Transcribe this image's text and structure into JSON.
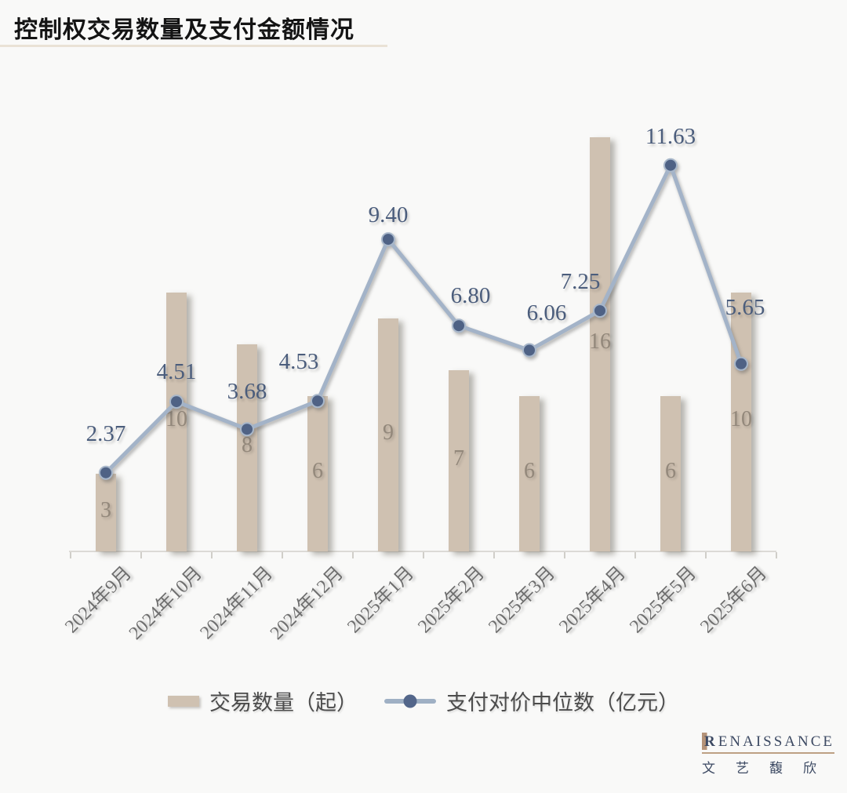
{
  "header": {
    "title": "控制权交易数量及支付金额情况"
  },
  "chart_data": {
    "type": "bar",
    "subtype": "combo-bar-line",
    "title": "控制权交易数量及支付金额情况",
    "categories": [
      "2024年9月",
      "2024年10月",
      "2024年11月",
      "2024年12月",
      "2025年1月",
      "2025年2月",
      "2025年3月",
      "2025年4月",
      "2025年5月",
      "2025年6月"
    ],
    "series": [
      {
        "name": "交易数量（起）",
        "type": "bar",
        "values": [
          3,
          10,
          8,
          6,
          9,
          7,
          6,
          16,
          6,
          10
        ],
        "color": "#cfc1b1",
        "label_color": "#93887b",
        "value_labels": "inside-center"
      },
      {
        "name": "支付对价中位数（亿元）",
        "type": "line",
        "values": [
          2.37,
          4.51,
          3.68,
          4.53,
          9.4,
          6.8,
          6.06,
          7.25,
          11.63,
          5.65
        ],
        "line_color": "#a3b3c8",
        "marker_color": "#4f6285",
        "label_color": "#4b5d7c",
        "value_labels": "above-point, 2 decimals"
      }
    ],
    "xlabel": "",
    "ylabel": "",
    "y_axis_visible": false,
    "grid": false,
    "x_tick_rotation": -45,
    "legend_position": "bottom-center"
  },
  "logo": {
    "brand": "RENAISSANCE",
    "brand_cn": "文艺馥欣",
    "navy": "#3d4a63",
    "tan": "#bda083"
  }
}
